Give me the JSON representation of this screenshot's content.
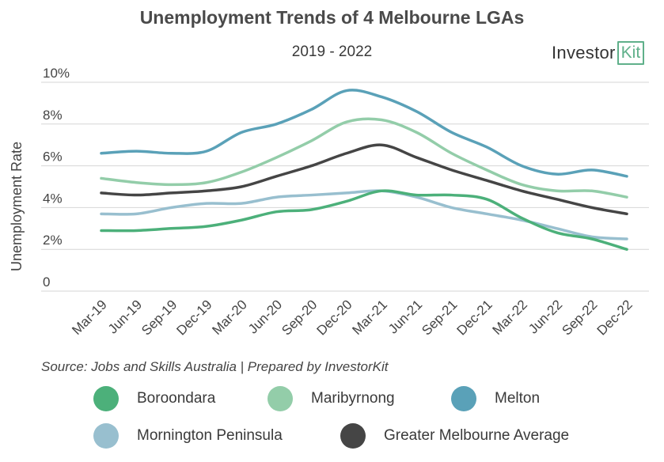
{
  "chart_data": {
    "type": "line",
    "title": "Unemployment Trends of 4 Melbourne LGAs",
    "subtitle": "2019 - 2022",
    "ylabel": "Unemployment Rate",
    "xlabel": "",
    "ylim": [
      0,
      10
    ],
    "yticks": [
      "0",
      "2%",
      "4%",
      "6%",
      "8%",
      "10%"
    ],
    "grid": true,
    "legend_position": "bottom",
    "categories": [
      "Mar-19",
      "Jun-19",
      "Sep-19",
      "Dec-19",
      "Mar-20",
      "Jun-20",
      "Sep-20",
      "Dec-20",
      "Mar-21",
      "Jun-21",
      "Sep-21",
      "Dec-21",
      "Mar-22",
      "Jun-22",
      "Sep-22",
      "Dec-22"
    ],
    "series": [
      {
        "name": "Boroondara",
        "color": "#4cb07a",
        "values": [
          2.9,
          2.9,
          3.0,
          3.1,
          3.4,
          3.8,
          3.9,
          4.3,
          4.8,
          4.6,
          4.6,
          4.4,
          3.5,
          2.8,
          2.5,
          2.0
        ]
      },
      {
        "name": "Maribyrnong",
        "color": "#93cda9",
        "values": [
          5.4,
          5.2,
          5.1,
          5.2,
          5.7,
          6.4,
          7.2,
          8.1,
          8.2,
          7.6,
          6.6,
          5.8,
          5.1,
          4.8,
          4.8,
          4.5
        ]
      },
      {
        "name": "Melton",
        "color": "#5aa1b8",
        "values": [
          6.6,
          6.7,
          6.6,
          6.7,
          7.6,
          8.0,
          8.7,
          9.6,
          9.3,
          8.6,
          7.6,
          6.9,
          6.0,
          5.6,
          5.8,
          5.5
        ]
      },
      {
        "name": "Mornington Peninsula",
        "color": "#98bfcf",
        "values": [
          3.7,
          3.7,
          4.0,
          4.2,
          4.2,
          4.5,
          4.6,
          4.7,
          4.8,
          4.5,
          4.0,
          3.7,
          3.4,
          3.0,
          2.6,
          2.5
        ]
      },
      {
        "name": "Greater Melbourne Average",
        "color": "#454545",
        "values": [
          4.7,
          4.6,
          4.7,
          4.8,
          5.0,
          5.5,
          6.0,
          6.6,
          7.0,
          6.4,
          5.8,
          5.3,
          4.8,
          4.4,
          4.0,
          3.7
        ]
      }
    ],
    "source": "Source: Jobs and Skills Australia | Prepared by InvestorKit"
  },
  "logo": {
    "text": "Investor",
    "box_text": "Kit"
  }
}
